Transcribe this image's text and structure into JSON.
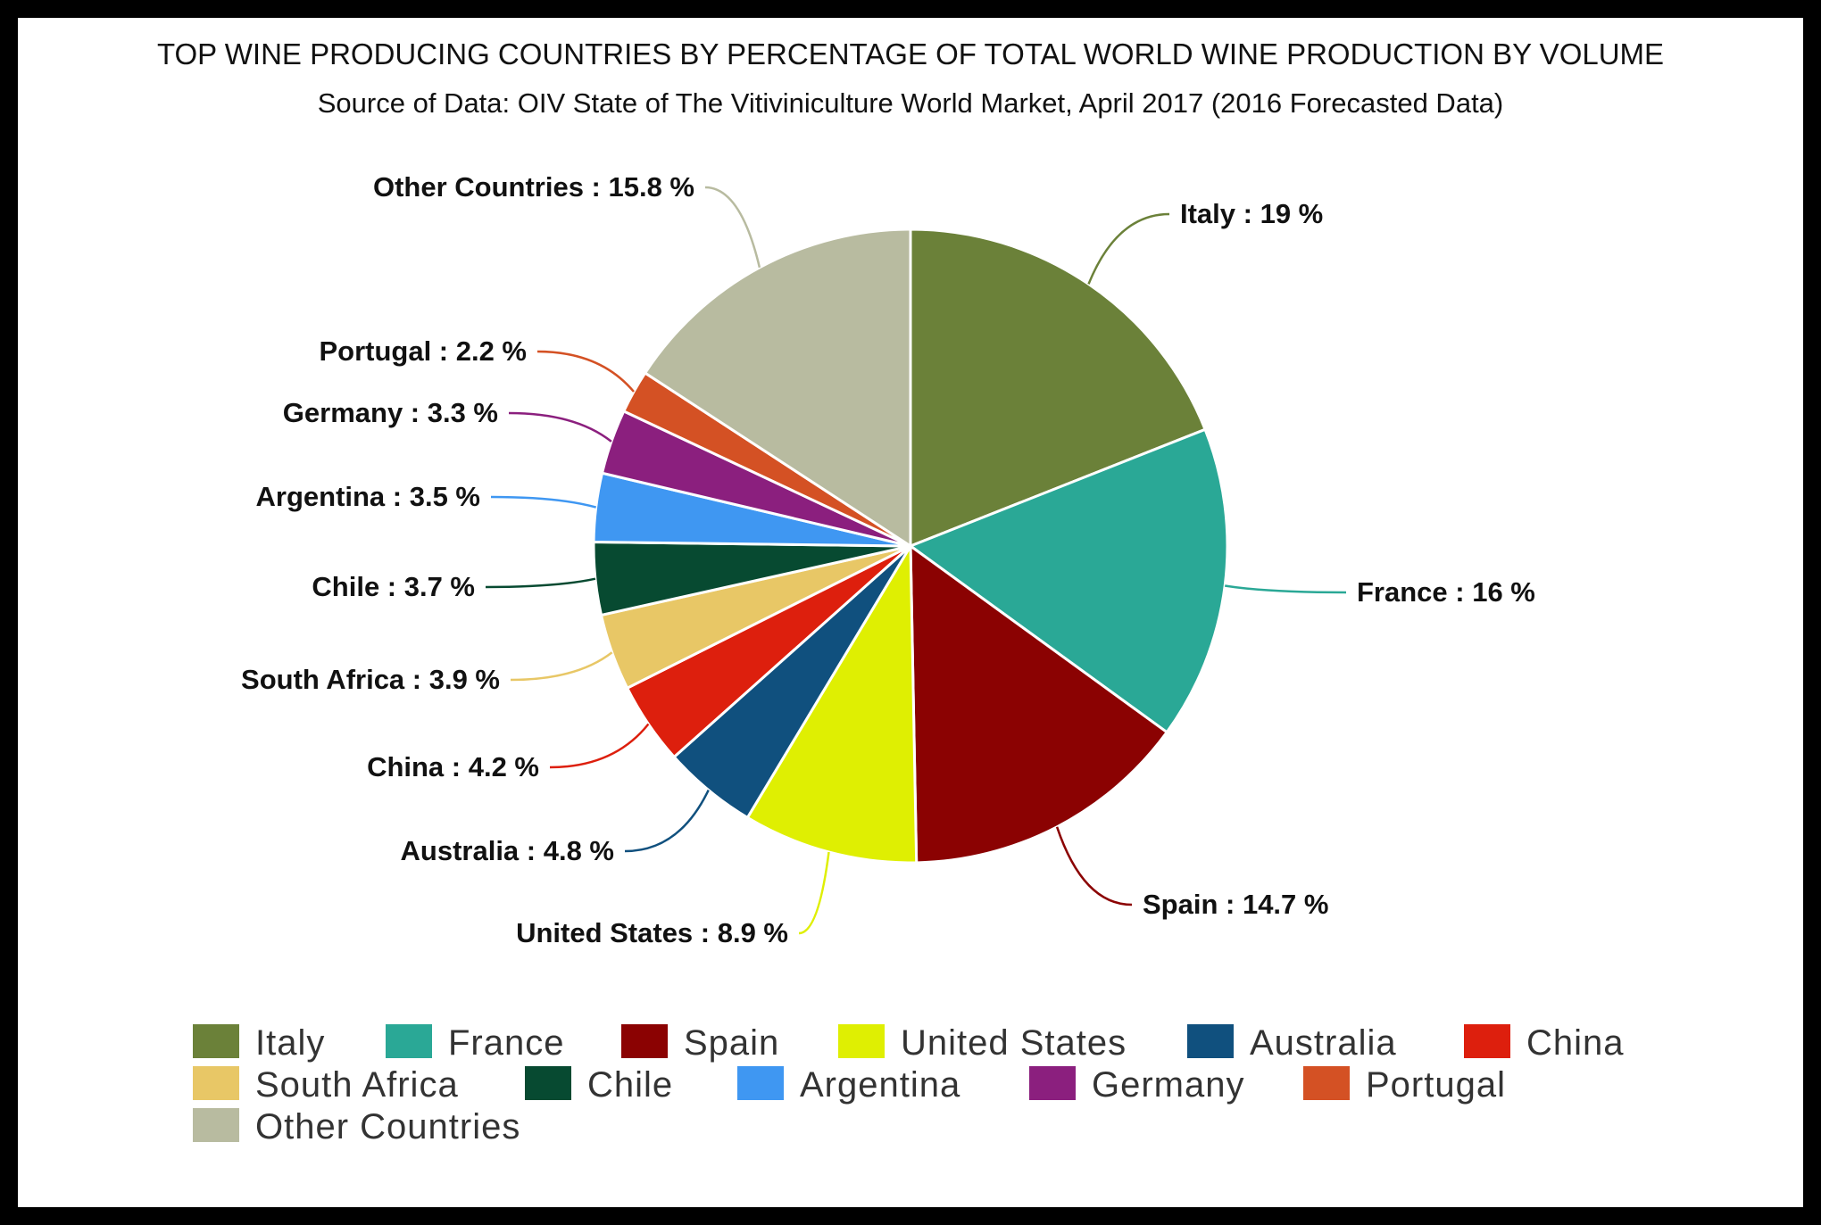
{
  "chart_data": {
    "type": "pie",
    "title": "TOP WINE PRODUCING COUNTRIES BY PERCENTAGE OF TOTAL WORLD WINE PRODUCTION BY VOLUME",
    "subtitle": "Source of Data: OIV State of The Vitiviniculture World Market, April 2017 (2016 Forecasted Data)",
    "label_format": "{name} : {value} %",
    "slices": [
      {
        "name": "Italy",
        "value": 19,
        "color": "#6b8139"
      },
      {
        "name": "France",
        "value": 16,
        "color": "#2aa896"
      },
      {
        "name": "Spain",
        "value": 14.7,
        "color": "#8b0202"
      },
      {
        "name": "United States",
        "value": 8.9,
        "color": "#dfef02"
      },
      {
        "name": "Australia",
        "value": 4.8,
        "color": "#10507e"
      },
      {
        "name": "China",
        "value": 4.2,
        "color": "#dd1f0d"
      },
      {
        "name": "South Africa",
        "value": 3.9,
        "color": "#e8c766"
      },
      {
        "name": "Chile",
        "value": 3.7,
        "color": "#074a31"
      },
      {
        "name": "Argentina",
        "value": 3.5,
        "color": "#3f97f2"
      },
      {
        "name": "Germany",
        "value": 3.3,
        "color": "#8b1f7e"
      },
      {
        "name": "Portugal",
        "value": 2.2,
        "color": "#d45124"
      },
      {
        "name": "Other Countries",
        "value": 15.8,
        "color": "#b8bba0"
      }
    ],
    "legend": {
      "position": "bottom",
      "rows": [
        [
          "Italy",
          "France",
          "Spain",
          "United States",
          "Australia",
          "China"
        ],
        [
          "South Africa",
          "Chile",
          "Argentina",
          "Germany",
          "Portugal"
        ],
        [
          "Other Countries"
        ]
      ]
    }
  }
}
